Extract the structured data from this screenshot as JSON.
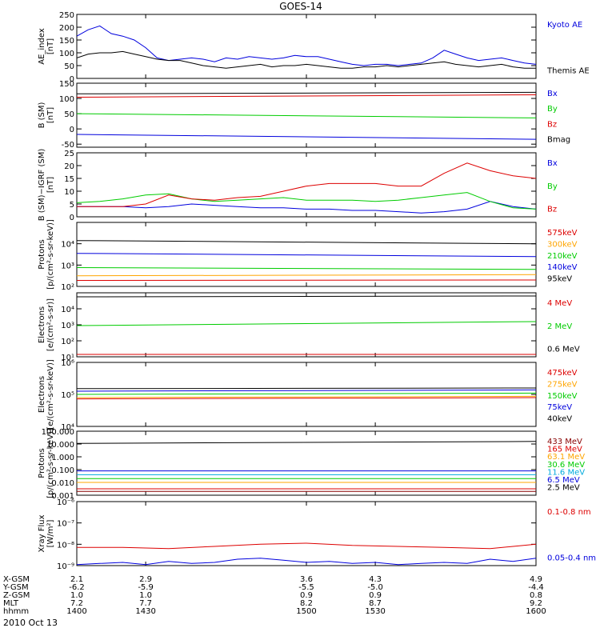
{
  "title": "GOES-14",
  "date": "2010 Oct 13",
  "x_axis": {
    "range": [
      1400,
      1600
    ],
    "ticks": [
      1400,
      1430,
      1500,
      1530,
      1600
    ],
    "rows": [
      {
        "label": "X-GSM",
        "values": [
          "2.1",
          "2.9",
          "3.6",
          "4.3",
          "4.9"
        ]
      },
      {
        "label": "Y-GSM",
        "values": [
          "-6.2",
          "-5.9",
          "-5.5",
          "-5.0",
          "-4.4"
        ]
      },
      {
        "label": "Z-GSM",
        "values": [
          "1.0",
          "1.0",
          "0.9",
          "0.9",
          "0.8"
        ]
      },
      {
        "label": "MLT",
        "values": [
          "7.2",
          "7.7",
          "8.2",
          "8.7",
          "9.2"
        ]
      },
      {
        "label": "hhmm",
        "values": [
          "1400",
          "1430",
          "1500",
          "1530",
          "1600"
        ]
      }
    ]
  },
  "chart_data": [
    {
      "id": "ae",
      "type": "line",
      "ylabel": "AE_index\n[nT]",
      "scale": "linear",
      "ylim": [
        0,
        250
      ],
      "yticks": [
        "0",
        "50",
        "100",
        "150",
        "200",
        "250"
      ],
      "ytick_values": [
        0,
        50,
        100,
        150,
        200,
        250
      ],
      "series": [
        {
          "name": "Kyoto AE",
          "color": "#0000dd",
          "x": [
            1400,
            1405,
            1410,
            1415,
            1420,
            1425,
            1430,
            1435,
            1440,
            1445,
            1450,
            1455,
            1460,
            1465,
            1470,
            1475,
            1480,
            1485,
            1490,
            1495,
            1500,
            1505,
            1510,
            1515,
            1520,
            1525,
            1530,
            1535,
            1540,
            1545,
            1550,
            1555,
            1560,
            1565,
            1570,
            1575,
            1580,
            1585,
            1590,
            1595,
            1600
          ],
          "y": [
            165,
            190,
            205,
            175,
            165,
            150,
            120,
            80,
            70,
            75,
            80,
            75,
            65,
            80,
            75,
            85,
            80,
            75,
            80,
            90,
            85,
            85,
            75,
            65,
            55,
            50,
            55,
            55,
            50,
            55,
            60,
            80,
            110,
            95,
            80,
            70,
            75,
            80,
            70,
            60,
            55
          ]
        },
        {
          "name": "Themis AE",
          "color": "#000000",
          "x": [
            1400,
            1405,
            1410,
            1415,
            1420,
            1425,
            1430,
            1435,
            1440,
            1445,
            1450,
            1455,
            1460,
            1465,
            1470,
            1475,
            1480,
            1485,
            1490,
            1495,
            1500,
            1505,
            1510,
            1515,
            1520,
            1525,
            1530,
            1535,
            1540,
            1545,
            1550,
            1555,
            1560,
            1565,
            1570,
            1575,
            1580,
            1585,
            1590,
            1595,
            1600
          ],
          "y": [
            80,
            95,
            100,
            100,
            105,
            95,
            85,
            75,
            70,
            70,
            60,
            50,
            45,
            40,
            45,
            50,
            55,
            45,
            50,
            50,
            55,
            50,
            45,
            40,
            40,
            45,
            45,
            50,
            45,
            50,
            55,
            60,
            65,
            55,
            50,
            45,
            50,
            55,
            45,
            40,
            40
          ]
        }
      ]
    },
    {
      "id": "bsm",
      "type": "line",
      "ylabel": "B (SM)\n[nT]",
      "scale": "linear",
      "ylim": [
        -60,
        150
      ],
      "yticks": [
        "-50",
        "0",
        "50",
        "100",
        "150"
      ],
      "ytick_values": [
        -50,
        0,
        50,
        100,
        150
      ],
      "series": [
        {
          "name": "Bx",
          "color": "#0000dd",
          "x": [
            1400,
            1600
          ],
          "y": [
            -18,
            -34
          ]
        },
        {
          "name": "By",
          "color": "#00cc00",
          "x": [
            1400,
            1600
          ],
          "y": [
            50,
            36
          ]
        },
        {
          "name": "Bz",
          "color": "#dd0000",
          "x": [
            1400,
            1600
          ],
          "y": [
            104,
            112
          ]
        },
        {
          "name": "Bmag",
          "color": "#000000",
          "x": [
            1400,
            1600
          ],
          "y": [
            115,
            120
          ]
        }
      ]
    },
    {
      "id": "bdiff",
      "type": "line",
      "ylabel": "B (SM)−IGRF (SM)\n[nT]",
      "scale": "linear",
      "ylim": [
        0,
        25
      ],
      "yticks": [
        "0",
        "5",
        "10",
        "15",
        "20",
        "25"
      ],
      "ytick_values": [
        0,
        5,
        10,
        15,
        20,
        25
      ],
      "series": [
        {
          "name": "Bx",
          "color": "#0000dd",
          "x": [
            1400,
            1410,
            1420,
            1430,
            1440,
            1450,
            1460,
            1470,
            1480,
            1490,
            1500,
            1510,
            1520,
            1530,
            1540,
            1550,
            1560,
            1570,
            1580,
            1590,
            1600
          ],
          "y": [
            4,
            4,
            4,
            3.5,
            4,
            5,
            4.5,
            4,
            3.5,
            3.5,
            3,
            3,
            2.5,
            2.5,
            2,
            1.5,
            2,
            3,
            6,
            4,
            3
          ]
        },
        {
          "name": "By",
          "color": "#00cc00",
          "x": [
            1400,
            1410,
            1420,
            1430,
            1440,
            1450,
            1460,
            1470,
            1480,
            1490,
            1500,
            1510,
            1520,
            1530,
            1540,
            1550,
            1560,
            1570,
            1580,
            1590,
            1600
          ],
          "y": [
            5.5,
            6,
            7,
            8.5,
            9,
            7,
            6,
            6.5,
            7,
            7.5,
            6.5,
            6.5,
            6.5,
            6,
            6.5,
            7.5,
            8.5,
            9.5,
            6,
            3.5,
            3
          ]
        },
        {
          "name": "Bz",
          "color": "#dd0000",
          "x": [
            1400,
            1410,
            1420,
            1430,
            1440,
            1450,
            1460,
            1470,
            1480,
            1490,
            1500,
            1510,
            1520,
            1530,
            1540,
            1550,
            1560,
            1570,
            1580,
            1590,
            1600
          ],
          "y": [
            4,
            4,
            4,
            5,
            8.5,
            7,
            6.5,
            7.5,
            8,
            10,
            12,
            13,
            13,
            13,
            12,
            12,
            17,
            21,
            18,
            16,
            15
          ]
        }
      ]
    },
    {
      "id": "protons",
      "type": "line",
      "ylabel": "Protons\n[p/(cm²-s-sr-keV)]",
      "scale": "log",
      "ylim": [
        2,
        5
      ],
      "yticks": [
        "10²",
        "10³",
        "10⁴"
      ],
      "ytick_values": [
        2,
        3,
        4
      ],
      "series": [
        {
          "name": "575keV",
          "color": "#dd0000",
          "x": [
            1400,
            1600
          ],
          "y": [
            2.28,
            2.3
          ]
        },
        {
          "name": "300keV",
          "color": "#ffa500",
          "x": [
            1400,
            1600
          ],
          "y": [
            2.5,
            2.55
          ]
        },
        {
          "name": "210keV",
          "color": "#00cc00",
          "x": [
            1400,
            1600
          ],
          "y": [
            2.88,
            2.8
          ]
        },
        {
          "name": "140keV",
          "color": "#0000dd",
          "x": [
            1400,
            1600
          ],
          "y": [
            3.55,
            3.4
          ]
        },
        {
          "name": "95keV",
          "color": "#000000",
          "x": [
            1400,
            1600
          ],
          "y": [
            4.15,
            4.0
          ]
        }
      ]
    },
    {
      "id": "electrons_mev",
      "type": "line",
      "ylabel": "Electrons\n[e/(cm²-s-sr)]",
      "scale": "log",
      "ylim": [
        1,
        5
      ],
      "yticks": [
        "10¹",
        "10²",
        "10³",
        "10⁴"
      ],
      "ytick_values": [
        1,
        2,
        3,
        4
      ],
      "series": [
        {
          "name": "4 MeV",
          "color": "#dd0000",
          "x": [
            1400,
            1600
          ],
          "y": [
            1.15,
            1.15
          ]
        },
        {
          "name": "2 MeV",
          "color": "#00cc00",
          "x": [
            1400,
            1600
          ],
          "y": [
            2.95,
            3.2
          ]
        },
        {
          "name": "0.6 MeV",
          "color": "#000000",
          "x": [
            1400,
            1600
          ],
          "y": [
            4.75,
            4.8
          ]
        }
      ]
    },
    {
      "id": "electrons_kev",
      "type": "line",
      "ylabel": "Electrons\n[e/(cm²-s-sr-keV)]",
      "scale": "log",
      "ylim": [
        4,
        6
      ],
      "yticks": [
        "10⁴",
        "10⁵",
        "10⁶"
      ],
      "ytick_values": [
        4,
        5,
        6
      ],
      "series": [
        {
          "name": "475keV",
          "color": "#dd0000",
          "x": [
            1400,
            1600
          ],
          "y": [
            4.86,
            4.9
          ]
        },
        {
          "name": "275keV",
          "color": "#ffa500",
          "x": [
            1400,
            1600
          ],
          "y": [
            4.9,
            4.94
          ]
        },
        {
          "name": "150keV",
          "color": "#00cc00",
          "x": [
            1400,
            1600
          ],
          "y": [
            5.0,
            5.04
          ]
        },
        {
          "name": "75keV",
          "color": "#0000dd",
          "x": [
            1400,
            1600
          ],
          "y": [
            5.1,
            5.14
          ]
        },
        {
          "name": "40keV",
          "color": "#000000",
          "x": [
            1400,
            1600
          ],
          "y": [
            5.18,
            5.2
          ]
        }
      ]
    },
    {
      "id": "protons_mev",
      "type": "line",
      "ylabel": "Protons\n[p/(cm²-s-sr-keV)]",
      "scale": "log",
      "ylim": [
        -3,
        2
      ],
      "yticks": [
        "0.001",
        "0.010",
        "0.100",
        "1.000",
        "10.000",
        "100.000"
      ],
      "ytick_values": [
        -3,
        -2,
        -1,
        0,
        1,
        2
      ],
      "series": [
        {
          "name": "433 MeV",
          "color": "#880000",
          "x": [
            1400,
            1600
          ],
          "y": [
            -2.7,
            -2.7
          ]
        },
        {
          "name": "165 MeV",
          "color": "#dd0000",
          "x": [
            1400,
            1600
          ],
          "y": [
            -2.5,
            -2.5
          ]
        },
        {
          "name": "63.1 MeV",
          "color": "#ffa500",
          "x": [
            1400,
            1600
          ],
          "y": [
            -2.0,
            -2.0
          ]
        },
        {
          "name": "30.6 MeV",
          "color": "#00cc00",
          "x": [
            1400,
            1600
          ],
          "y": [
            -1.7,
            -1.7
          ]
        },
        {
          "name": "11.6 MeV",
          "color": "#00aadd",
          "x": [
            1400,
            1600
          ],
          "y": [
            -1.4,
            -1.4
          ]
        },
        {
          "name": "6.5 MeV",
          "color": "#0000dd",
          "x": [
            1400,
            1600
          ],
          "y": [
            -1.1,
            -1.1
          ]
        },
        {
          "name": "2.5 MeV",
          "color": "#000000",
          "x": [
            1400,
            1600
          ],
          "y": [
            1.05,
            1.2
          ]
        }
      ]
    },
    {
      "id": "xray",
      "type": "line",
      "ylabel": "Xray Flux\n[W/m²]",
      "scale": "log",
      "ylim": [
        -9,
        -6
      ],
      "yticks": [
        "10⁻⁹",
        "10⁻⁸",
        "10⁻⁷",
        "10⁻⁶"
      ],
      "ytick_values": [
        -9,
        -8,
        -7,
        -6
      ],
      "series": [
        {
          "name": "0.1-0.8 nm",
          "color": "#dd0000",
          "x": [
            1400,
            1420,
            1440,
            1460,
            1480,
            1500,
            1520,
            1540,
            1560,
            1580,
            1600
          ],
          "y": [
            -8.15,
            -8.15,
            -8.2,
            -8.1,
            -8.0,
            -7.95,
            -8.05,
            -8.1,
            -8.15,
            -8.2,
            -8.0
          ]
        },
        {
          "name": "0.05-0.4 nm",
          "color": "#0000dd",
          "x": [
            1400,
            1410,
            1420,
            1430,
            1440,
            1450,
            1460,
            1470,
            1480,
            1490,
            1500,
            1510,
            1520,
            1530,
            1540,
            1550,
            1560,
            1570,
            1580,
            1590,
            1600
          ],
          "y": [
            -8.95,
            -8.9,
            -8.85,
            -8.95,
            -8.8,
            -8.9,
            -8.85,
            -8.7,
            -8.65,
            -8.75,
            -8.85,
            -8.8,
            -8.9,
            -8.85,
            -8.95,
            -8.9,
            -8.85,
            -8.9,
            -8.7,
            -8.8,
            -8.65
          ]
        }
      ]
    }
  ]
}
